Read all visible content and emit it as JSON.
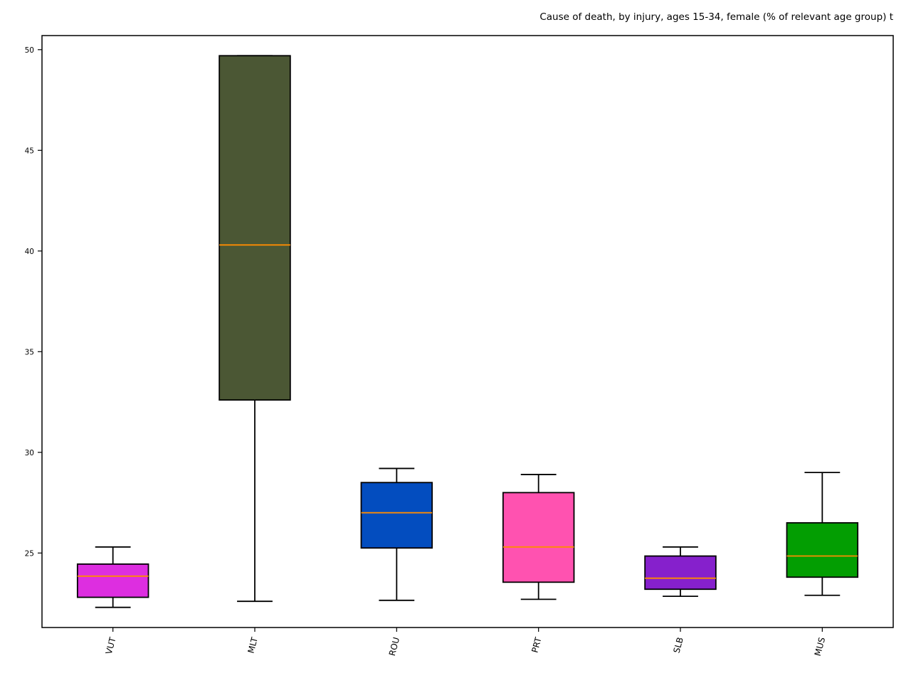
{
  "chart_data": {
    "type": "box",
    "title": "Cause of death, by injury, ages 15-34, female  (% of relevant age group) t",
    "xlabel": "",
    "ylabel": "",
    "ylim": [
      21.3,
      50.7
    ],
    "yticks": [
      25,
      30,
      35,
      40,
      45,
      50
    ],
    "grid": false,
    "categories": [
      "VUT",
      "MLT",
      "ROU",
      "PRT",
      "SLB",
      "MUS"
    ],
    "boxes": [
      {
        "category": "VUT",
        "whislo": 22.3,
        "q1": 22.8,
        "median": 23.85,
        "q3": 24.45,
        "whishi": 25.3,
        "color": "#dd2ee0"
      },
      {
        "category": "MLT",
        "whislo": 22.6,
        "q1": 32.6,
        "median": 40.3,
        "q3": 49.7,
        "whishi": 49.7,
        "color": "#4b5734"
      },
      {
        "category": "ROU",
        "whislo": 22.65,
        "q1": 25.25,
        "median": 27.0,
        "q3": 28.5,
        "whishi": 29.2,
        "color": "#034dbf"
      },
      {
        "category": "PRT",
        "whislo": 22.7,
        "q1": 23.55,
        "median": 25.3,
        "q3": 28.0,
        "whishi": 28.9,
        "color": "#ff52b0"
      },
      {
        "category": "SLB",
        "whislo": 22.85,
        "q1": 23.2,
        "median": 23.75,
        "q3": 24.85,
        "whishi": 25.3,
        "color": "#8620cc"
      },
      {
        "category": "MUS",
        "whislo": 22.9,
        "q1": 23.8,
        "median": 24.85,
        "q3": 26.5,
        "whishi": 29.0,
        "color": "#039e02"
      }
    ],
    "median_color": "#ff8c00"
  }
}
